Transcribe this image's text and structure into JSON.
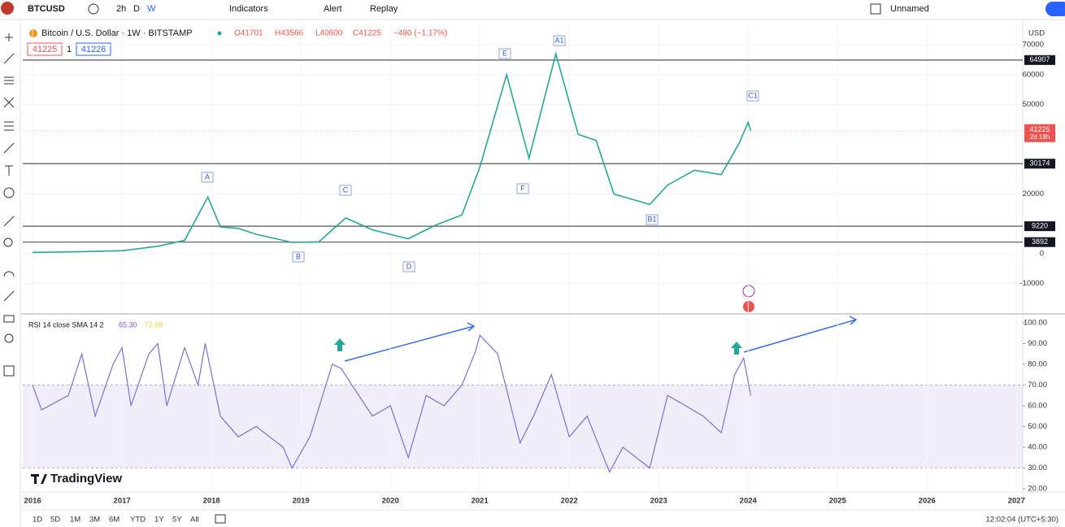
{
  "toolbar": {
    "symbol": "BTCUSD",
    "intervals": [
      "2h",
      "D",
      "W"
    ],
    "buttons": [
      "Indicators",
      "Alert",
      "Replay"
    ],
    "layout_name": "Unnamed"
  },
  "legend": {
    "title": "Bitcoin / U.S. Dollar · 1W · BITSTAMP",
    "ohlc": [
      "O41701",
      "H43566",
      "L40600",
      "C41225",
      "−490 (−1.17%)"
    ],
    "bid": "41225",
    "spread": "1",
    "ask": "41226",
    "currency": "USD"
  },
  "chart_data": [
    {
      "type": "line",
      "name": "price",
      "color": "#26a69a",
      "x": [
        2016.0,
        2016.5,
        2017.0,
        2017.4,
        2017.7,
        2017.96,
        2018.1,
        2018.3,
        2018.5,
        2018.9,
        2019.2,
        2019.5,
        2019.8,
        2020.2,
        2020.5,
        2020.8,
        2021.0,
        2021.3,
        2021.55,
        2021.85,
        2022.1,
        2022.3,
        2022.5,
        2022.9,
        2023.1,
        2023.4,
        2023.7,
        2023.9,
        2024.0,
        2024.03
      ],
      "values": [
        430,
        650,
        1000,
        2500,
        4500,
        19000,
        9000,
        8500,
        6500,
        3800,
        4000,
        12000,
        8000,
        5000,
        9500,
        13000,
        29000,
        60000,
        32000,
        67000,
        40000,
        38000,
        20000,
        16500,
        23000,
        28000,
        26500,
        37000,
        44000,
        41225
      ],
      "xlim": [
        2015.89,
        2027.07
      ],
      "xticks": [
        2016,
        2017,
        2018,
        2019,
        2020,
        2021,
        2022,
        2023,
        2024,
        2025,
        2026,
        2027
      ],
      "ylim": [
        -19900,
        77400
      ],
      "yticks": [
        -10000,
        0,
        20000,
        50000,
        60000,
        70000
      ],
      "grid": true,
      "levels": [
        64907,
        30174,
        9220,
        3892
      ],
      "last_price": 41225,
      "countdown": "2d 18h",
      "wave_labels": [
        "A",
        "B",
        "C",
        "D",
        "E",
        "F",
        "A1",
        "B1",
        "C1"
      ]
    },
    {
      "type": "line",
      "name": "rsi",
      "title": "RSI 14 close SMA 14 2",
      "readings": [
        "65.30",
        "72.88"
      ],
      "color": "#7e6fd1",
      "x": [
        2016.0,
        2016.1,
        2016.4,
        2016.55,
        2016.7,
        2016.9,
        2017.0,
        2017.1,
        2017.3,
        2017.4,
        2017.5,
        2017.7,
        2017.85,
        2017.93,
        2018.1,
        2018.3,
        2018.5,
        2018.8,
        2018.9,
        2019.1,
        2019.35,
        2019.45,
        2019.6,
        2019.8,
        2020.0,
        2020.2,
        2020.4,
        2020.6,
        2020.8,
        2020.95,
        2021.0,
        2021.2,
        2021.45,
        2021.6,
        2021.8,
        2022.0,
        2022.2,
        2022.45,
        2022.6,
        2022.9,
        2023.1,
        2023.3,
        2023.5,
        2023.7,
        2023.85,
        2023.95,
        2024.03
      ],
      "values": [
        70,
        58,
        65,
        85,
        55,
        80,
        88,
        60,
        85,
        90,
        60,
        88,
        70,
        90,
        55,
        45,
        50,
        40,
        30,
        45,
        80,
        78,
        68,
        55,
        60,
        35,
        65,
        60,
        70,
        86,
        94,
        85,
        42,
        55,
        75,
        45,
        55,
        28,
        40,
        30,
        65,
        60,
        55,
        47,
        75,
        83,
        65
      ],
      "ylim": [
        18.4,
        103.5
      ],
      "yticks": [
        {
          "value": 20,
          "label": "20.00"
        },
        {
          "value": 30,
          "label": "30.00"
        },
        {
          "value": 40,
          "label": "40.00"
        },
        {
          "value": 50,
          "label": "50.00"
        },
        {
          "value": 60,
          "label": "60.00"
        },
        {
          "value": 70,
          "label": "70.00"
        },
        {
          "value": 80,
          "label": "80.00"
        },
        {
          "value": 90,
          "label": "90.00"
        },
        {
          "value": 100,
          "label": "100.00"
        }
      ],
      "band": [
        30,
        70
      ],
      "watermark": "TradingView"
    }
  ],
  "bottom_bar": {
    "ranges": [
      "1D",
      "5D",
      "1M",
      "3M",
      "6M",
      "YTD",
      "1Y",
      "5Y",
      "All"
    ],
    "clock": "12:02:04 (UTC+5:30)"
  }
}
